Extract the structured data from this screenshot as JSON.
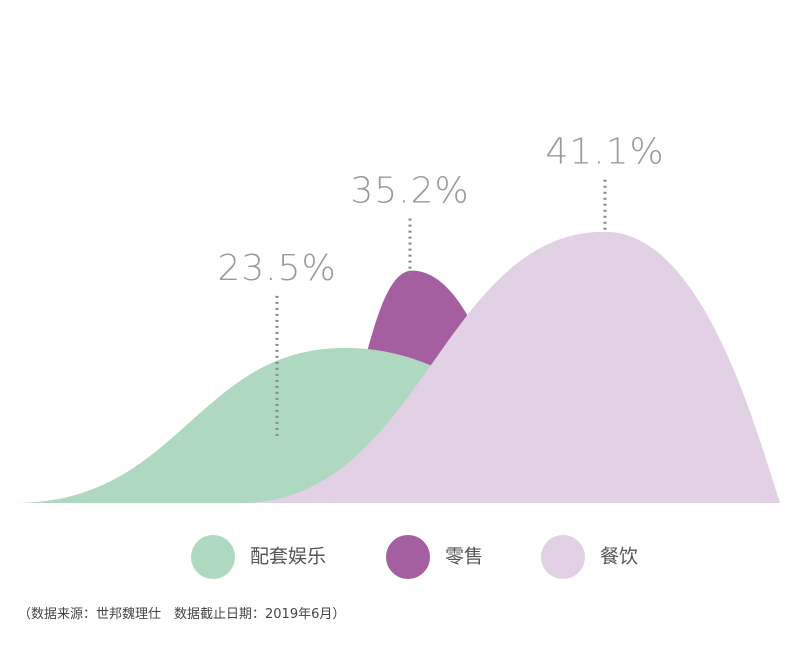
{
  "chart_data": {
    "type": "mountain",
    "categories": [
      "配套娱乐",
      "零售",
      "餐饮"
    ],
    "values": [
      23.5,
      35.2,
      41.1
    ],
    "value_labels": [
      "23.5%",
      "35.2%",
      "41.1%"
    ],
    "colors": [
      "#aed8c0",
      "#a55fa0",
      "#e2d0e4"
    ],
    "source": "（数据来源：世邦魏理仕　数据截止日期：2019年6月）"
  }
}
